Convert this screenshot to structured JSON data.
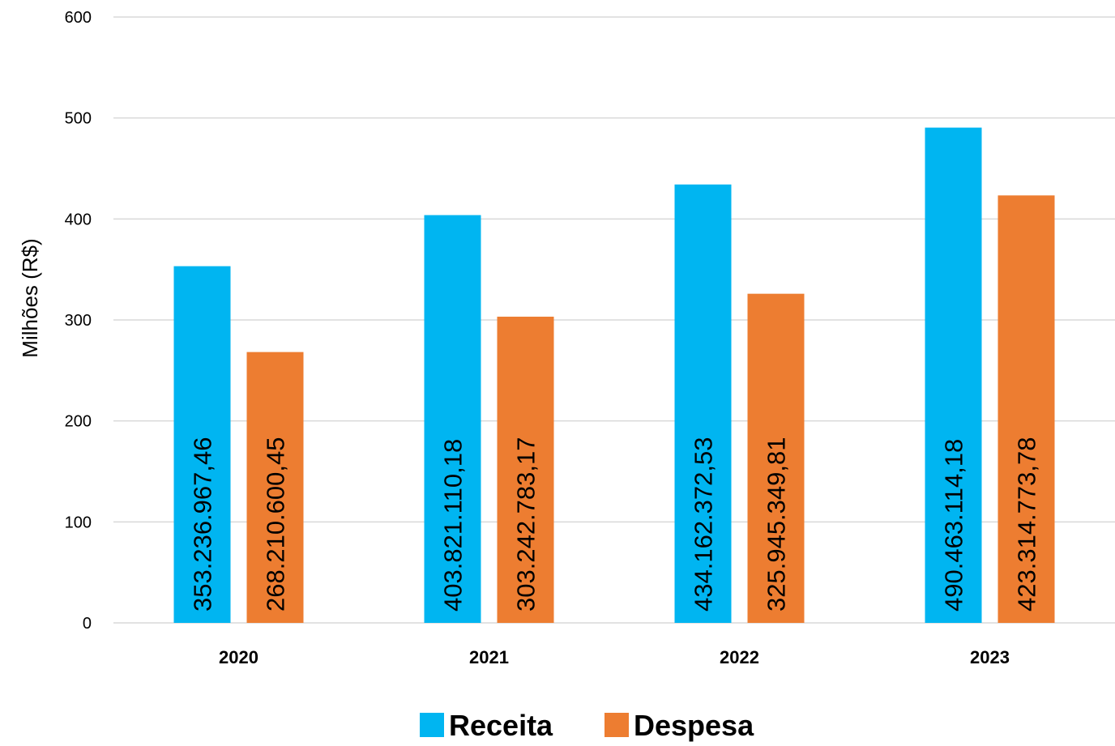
{
  "chart_data": {
    "type": "bar",
    "categories": [
      "2020",
      "2021",
      "2022",
      "2023"
    ],
    "series": [
      {
        "name": "Receita",
        "color": "#00B5F1",
        "values": [
          353.23696746,
          403.82111018,
          434.16237253,
          490.46311418
        ],
        "labels": [
          "353.236.967,46",
          "403.821.110,18",
          "434.162.372,53",
          "490.463.114,18"
        ]
      },
      {
        "name": "Despesa",
        "color": "#ED7D31",
        "values": [
          268.21060045,
          303.24278317,
          325.94534981,
          423.31477378
        ],
        "labels": [
          "268.210.600,45",
          "303.242.783,17",
          "325.945.349,81",
          "423.314.773,78"
        ]
      }
    ],
    "ylabel": "Milhões (R$)",
    "ylim": [
      0,
      600
    ],
    "yticks": [
      0,
      100,
      200,
      300,
      400,
      500,
      600
    ],
    "grid": true,
    "legend_position": "bottom-center"
  }
}
